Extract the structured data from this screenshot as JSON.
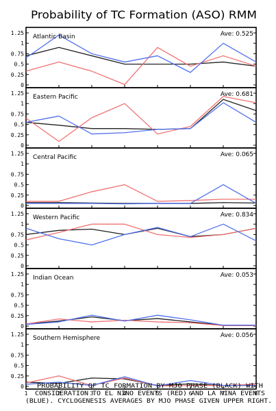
{
  "chart_data": {
    "type": "line",
    "title": "Probability of TC Formation (ASO) RMM",
    "caption": [
      "PROBABILITY OF TC FORMATION BY MJO PHASE (BLACK) WITH",
      "CONSIDERATION TO EL NINO EVENTS (RED) AND LA NINA EVENTS",
      "(BLUE). CYCLOGENESIS AVERAGES BY MJO PHASE GIVEN UPPER RIGHT."
    ],
    "x": [
      1,
      2,
      3,
      4,
      5,
      6,
      7,
      8
    ],
    "x_ticks": [
      "1",
      "2",
      "3",
      "4",
      "5",
      "6",
      "7",
      "8"
    ],
    "ylim": [
      0,
      1.25
    ],
    "y_ticks": [
      "0",
      "0.25",
      "0.5",
      "0.75",
      "1",
      "1.25"
    ],
    "grid": false,
    "colors": {
      "black": "#202020",
      "red": "#f07070",
      "blue": "#5070ee"
    },
    "panels": [
      {
        "name": "Atlantic Basin",
        "ave_label": "Ave: 0.525",
        "series": [
          {
            "color": "black",
            "values": [
              0.7,
              0.9,
              0.7,
              0.5,
              0.5,
              0.5,
              0.55,
              0.45
            ]
          },
          {
            "color": "red",
            "values": [
              0.33,
              0.55,
              0.33,
              0.01,
              0.9,
              0.45,
              0.7,
              0.45
            ]
          },
          {
            "color": "blue",
            "values": [
              0.65,
              1.2,
              0.75,
              0.55,
              0.7,
              0.3,
              1.0,
              0.55
            ]
          }
        ]
      },
      {
        "name": "Eastern Pacific",
        "ave_label": "Ave: 0.681",
        "series": [
          {
            "color": "black",
            "values": [
              0.55,
              0.48,
              0.4,
              0.4,
              0.38,
              0.4,
              1.1,
              0.83
            ]
          },
          {
            "color": "red",
            "values": [
              0.65,
              0.09,
              0.66,
              1.0,
              0.27,
              0.45,
              1.17,
              1.02
            ]
          },
          {
            "color": "blue",
            "values": [
              0.55,
              0.7,
              0.27,
              0.3,
              0.38,
              0.4,
              1.02,
              0.55
            ]
          }
        ]
      },
      {
        "name": "Central Pacific",
        "ave_label": "Ave: 0.065",
        "series": [
          {
            "color": "black",
            "values": [
              0.07,
              0.07,
              0.06,
              0.05,
              0.05,
              0.05,
              0.07,
              0.06
            ]
          },
          {
            "color": "red",
            "values": [
              0.1,
              0.1,
              0.33,
              0.5,
              0.1,
              0.12,
              0.15,
              0.15
            ]
          },
          {
            "color": "blue",
            "values": [
              0.05,
              0.05,
              0.05,
              0.04,
              0.05,
              0.05,
              0.5,
              0.05
            ]
          }
        ]
      },
      {
        "name": "Western Pacific",
        "ave_label": "Ave: 0.834",
        "series": [
          {
            "color": "black",
            "values": [
              0.75,
              0.85,
              0.88,
              0.75,
              0.9,
              0.7,
              0.75,
              0.9
            ]
          },
          {
            "color": "red",
            "values": [
              0.62,
              0.8,
              1.0,
              1.0,
              0.75,
              0.68,
              0.75,
              0.9
            ]
          },
          {
            "color": "blue",
            "values": [
              0.9,
              0.65,
              0.5,
              0.75,
              0.92,
              0.7,
              1.0,
              0.6
            ]
          }
        ]
      },
      {
        "name": "Indian Ocean",
        "ave_label": "Ave: 0.053",
        "series": [
          {
            "color": "black",
            "values": [
              0.05,
              0.12,
              0.22,
              0.13,
              0.18,
              0.1,
              0.02,
              0.02
            ]
          },
          {
            "color": "red",
            "values": [
              0.05,
              0.17,
              0.1,
              0.14,
              0.1,
              0.08,
              0.01,
              0.01
            ]
          },
          {
            "color": "blue",
            "values": [
              0.04,
              0.1,
              0.26,
              0.12,
              0.26,
              0.15,
              0.02,
              0.02
            ]
          }
        ]
      },
      {
        "name": "Southern Hemisphere",
        "ave_label": "Ave: 0.056",
        "series": [
          {
            "color": "black",
            "values": [
              0.1,
              0.07,
              0.2,
              0.18,
              0.02,
              0.06,
              0.02,
              0.02
            ]
          },
          {
            "color": "red",
            "values": [
              0.08,
              0.25,
              0.02,
              0.2,
              0.01,
              0.02,
              0.02,
              0.05
            ]
          },
          {
            "color": "blue",
            "values": [
              0.05,
              0.1,
              0.02,
              0.23,
              0.01,
              0.14,
              0.02,
              0.02
            ]
          }
        ]
      }
    ]
  }
}
